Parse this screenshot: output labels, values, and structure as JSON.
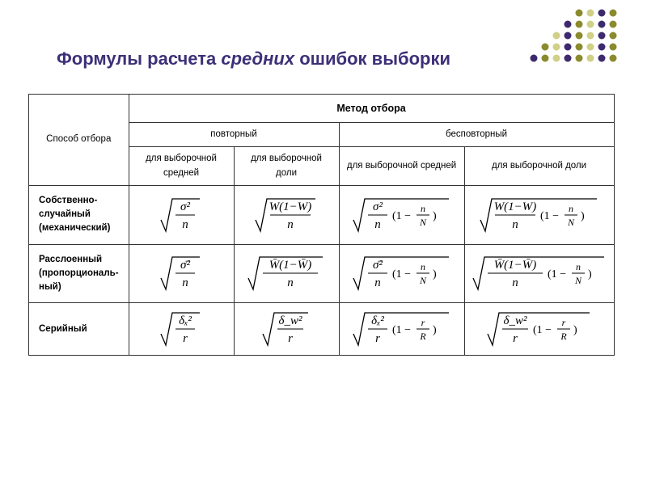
{
  "colors": {
    "title": "#3d3078",
    "dot_dark": "#3d2a6e",
    "dot_olive": "#8a8a2e",
    "dot_light": "#d0d088",
    "border": "#333333",
    "text": "#000000",
    "bg": "#ffffff"
  },
  "fonts": {
    "title_size_pt": 17,
    "body_size_pt": 9,
    "formula_family": "Times New Roman, serif"
  },
  "title": {
    "prefix": "Формулы расчета ",
    "italic": "средних",
    "suffix": " ошибок выборки"
  },
  "table": {
    "row_header_title": "Способ отбора",
    "method_header": "Метод отбора",
    "method_cols": [
      "повторный",
      "бесповторный"
    ],
    "sub_cols": [
      "для выборочной средней",
      "для выборочной доли",
      "для выборочной средней",
      "для выборочной доли"
    ],
    "rows": [
      {
        "label": "Собственно-случайный (механический)",
        "formulas": [
          "sqrt_sigma2_n",
          "sqrt_w1w_n",
          "sqrt_sigma2_n_1nN",
          "sqrt_w1w_n_1nN"
        ]
      },
      {
        "label": "Расслоенный (пропорциональ-ный)",
        "formulas": [
          "sqrt_sbar2_n",
          "sqrt_w1wbar_n",
          "sqrt_sbar2_n_1nN",
          "sqrt_w1wbar_n_1nN"
        ]
      },
      {
        "label": "Серийный",
        "formulas": [
          "sqrt_dx2_r",
          "sqrt_dw2_r",
          "sqrt_dx2_r_1rR",
          "sqrt_dw2_r_1rRcap"
        ]
      }
    ]
  },
  "formula_glyphs": {
    "sqrt_sigma2_n": {
      "num": "σ²",
      "den": "n",
      "extra": ""
    },
    "sqrt_w1w_n": {
      "num": "W(1−W)",
      "den": "n",
      "extra": ""
    },
    "sqrt_sigma2_n_1nN": {
      "num": "σ²",
      "den": "n",
      "extra": "(1 − n/N)"
    },
    "sqrt_w1w_n_1nN": {
      "num": "W(1−W)",
      "den": "n",
      "extra": "(1 − n/N)"
    },
    "sqrt_sbar2_n": {
      "num": "σ̄²",
      "den": "n",
      "extra": ""
    },
    "sqrt_w1wbar_n": {
      "num": "W̄(1−W̄)",
      "den": "n",
      "extra": "",
      "numbar": true
    },
    "sqrt_sbar2_n_1nN": {
      "num": "σ̄²",
      "den": "n",
      "extra": "(1 − n/N)"
    },
    "sqrt_w1wbar_n_1nN": {
      "num": "W̄(1−W̄)",
      "den": "n",
      "extra": "(1 − n/N)",
      "numbar": true
    },
    "sqrt_dx2_r": {
      "num": "δₓ²",
      "den": "r",
      "extra": ""
    },
    "sqrt_dw2_r": {
      "num": "δ_w²",
      "den": "r",
      "extra": ""
    },
    "sqrt_dx2_r_1rR": {
      "num": "δₓ²",
      "den": "r",
      "extra": "(1 − r/R)"
    },
    "sqrt_dw2_r_1rRcap": {
      "num": "δ_w²",
      "den": "r",
      "extra": "(1 − r/R)"
    }
  }
}
